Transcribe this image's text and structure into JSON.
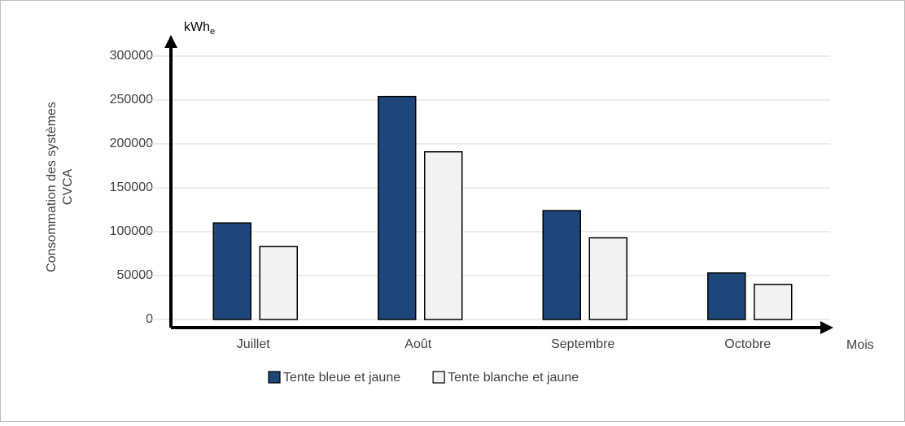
{
  "chart_data": {
    "type": "bar",
    "ylabel": [
      "Consommation des systèmes",
      "CVCA"
    ],
    "y_unit": "kWh",
    "y_unit_subscript": "e",
    "xlabel": "Mois",
    "categories": [
      "Juillet",
      "Août",
      "Septembre",
      "Octobre"
    ],
    "series": [
      {
        "name": "Tente bleue et jaune",
        "color": "#1f467b",
        "values": [
          110000,
          254000,
          124000,
          53000
        ]
      },
      {
        "name": "Tente blanche et jaune",
        "color": "#f2f2f2",
        "values": [
          83000,
          191000,
          93000,
          40000
        ]
      }
    ],
    "ylim": [
      0,
      300000
    ],
    "yticks": [
      0,
      50000,
      100000,
      150000,
      200000,
      250000,
      300000
    ],
    "grid": true,
    "legend": "bottom"
  }
}
